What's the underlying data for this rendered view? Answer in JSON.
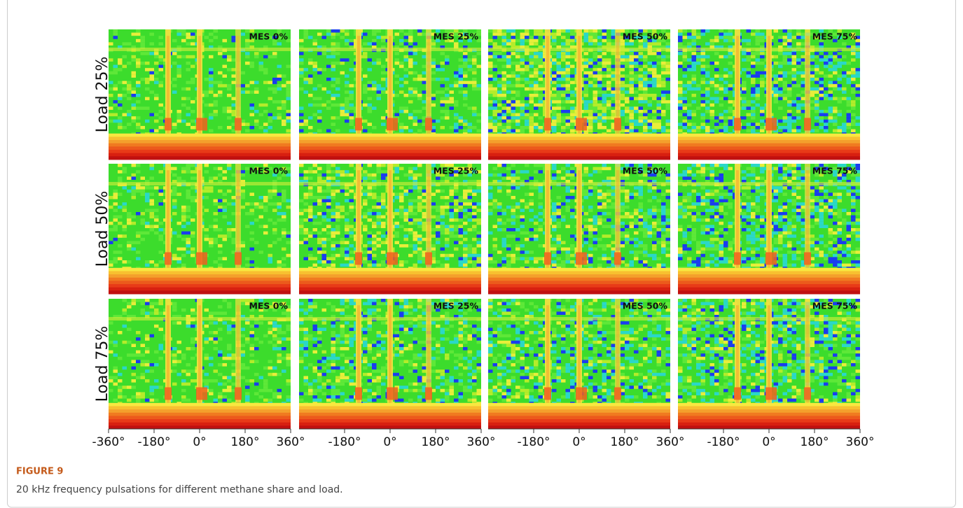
{
  "figure": {
    "rows": [
      "Load 25%",
      "Load 50%",
      "Load 75%"
    ],
    "columns": [
      "MES 0%",
      "MES 25%",
      "MES 50%",
      "MES 75%"
    ],
    "xticks": [
      {
        "value": -360,
        "label": "-360°"
      },
      {
        "value": -180,
        "label": "-180°"
      },
      {
        "value": 0,
        "label": "0°"
      },
      {
        "value": 180,
        "label": "180°"
      },
      {
        "value": 360,
        "label": "360°"
      }
    ],
    "label": "FIGURE 9",
    "caption": "20 kHz frequency pulsations for different methane share and load."
  }
}
